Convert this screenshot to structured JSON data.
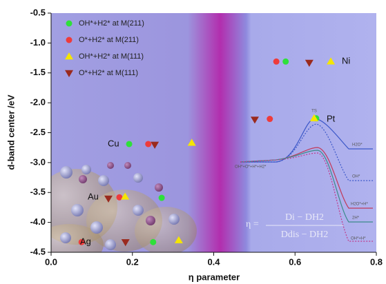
{
  "chart_data": {
    "type": "scatter",
    "xlabel": "η parameter",
    "ylabel": "d-band center /eV",
    "xlim": [
      0,
      0.8
    ],
    "ylim": [
      -4.5,
      -0.5
    ],
    "xticks": [
      {
        "value": 0,
        "label": "0.0"
      },
      0.2,
      0.4,
      0.6,
      0.8
    ],
    "yticks": [
      -0.5,
      {
        "value": -1,
        "label": "-1.0"
      },
      -1.5,
      {
        "value": -2,
        "label": "-2.0"
      },
      -2.5,
      {
        "value": -3,
        "label": "-3.0"
      },
      -3.5,
      {
        "value": -4,
        "label": "-4.0"
      },
      -4.5
    ],
    "series": [
      {
        "name": "OH*+H2* at M(211)",
        "color": "#2ee03a",
        "marker": "circle",
        "x": [
          0.577,
          0.652,
          0.192,
          0.272,
          0.251
        ],
        "values": [
          -1.31,
          -2.26,
          -2.69,
          -3.59,
          -4.33
        ]
      },
      {
        "name": "O*+H2* at M(211)",
        "color": "#ee3b3b",
        "marker": "circle",
        "x": [
          0.554,
          0.538,
          0.239,
          0.168,
          0.075
        ],
        "values": [
          -1.31,
          -2.27,
          -2.69,
          -3.58,
          -4.33
        ]
      },
      {
        "name": "OH*+H2* at M(111)",
        "color": "#f5e600",
        "marker": "triangle-up",
        "x": [
          0.688,
          0.647,
          0.346,
          0.182,
          0.314
        ],
        "values": [
          -1.31,
          -2.26,
          -2.67,
          -3.57,
          -4.3
        ]
      },
      {
        "name": "O*+H2* at M(111)",
        "color": "#9a2a1e",
        "marker": "triangle-down",
        "x": [
          0.635,
          0.501,
          0.255,
          0.141,
          0.183
        ],
        "values": [
          -1.33,
          -2.28,
          -2.7,
          -3.6,
          -4.33
        ]
      }
    ],
    "metals": [
      "Ni",
      "Pt",
      "Cu",
      "Au",
      "Ag"
    ],
    "inset_labels": [
      "TS",
      "H2O*",
      "OH*",
      "H2O*+H*",
      "2H*",
      "OH*+H*",
      "OH*+O*+H*+H2*"
    ],
    "formula": {
      "lhs": "η =",
      "numerator": "Di − DH2",
      "denominator": "Ddis − DH2"
    }
  }
}
